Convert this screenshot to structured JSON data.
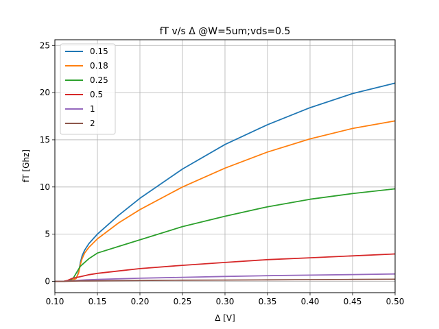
{
  "chart_data": {
    "type": "line",
    "title": "fT v/s Δ @W=5um;vds=0.5",
    "xlabel": "Δ [V]",
    "ylabel": "fT [Ghz]",
    "xlim": [
      0.1,
      0.5
    ],
    "ylim": [
      -1.2,
      25.6
    ],
    "xticks": [
      "0.10",
      "0.15",
      "0.20",
      "0.25",
      "0.30",
      "0.35",
      "0.40",
      "0.45",
      "0.50"
    ],
    "yticks": [
      "0",
      "5",
      "10",
      "15",
      "20",
      "25"
    ],
    "grid": true,
    "legend_position": "top-left",
    "series": [
      {
        "name": "0.15",
        "color": "#1f77b4",
        "x": [
          0.1,
          0.11,
          0.12,
          0.125,
          0.128,
          0.13,
          0.132,
          0.135,
          0.14,
          0.15,
          0.175,
          0.2,
          0.25,
          0.3,
          0.35,
          0.4,
          0.45,
          0.5
        ],
        "y": [
          0.0,
          0.0,
          0.1,
          0.3,
          1.0,
          2.0,
          2.7,
          3.3,
          4.0,
          5.0,
          7.0,
          8.8,
          11.9,
          14.5,
          16.6,
          18.4,
          19.9,
          21.0
        ]
      },
      {
        "name": "0.18",
        "color": "#ff7f0e",
        "x": [
          0.1,
          0.11,
          0.12,
          0.125,
          0.128,
          0.13,
          0.132,
          0.135,
          0.14,
          0.15,
          0.175,
          0.2,
          0.25,
          0.3,
          0.35,
          0.4,
          0.45,
          0.5
        ],
        "y": [
          0.0,
          0.0,
          0.1,
          0.3,
          0.9,
          1.8,
          2.4,
          3.0,
          3.6,
          4.5,
          6.2,
          7.6,
          10.0,
          12.0,
          13.7,
          15.1,
          16.2,
          17.0
        ]
      },
      {
        "name": "0.25",
        "color": "#2ca02c",
        "x": [
          0.1,
          0.11,
          0.118,
          0.122,
          0.126,
          0.13,
          0.135,
          0.14,
          0.15,
          0.175,
          0.2,
          0.25,
          0.3,
          0.35,
          0.4,
          0.45,
          0.5
        ],
        "y": [
          0.0,
          0.0,
          0.1,
          0.4,
          1.0,
          1.6,
          2.0,
          2.4,
          3.0,
          3.7,
          4.4,
          5.8,
          6.9,
          7.9,
          8.7,
          9.3,
          9.8
        ]
      },
      {
        "name": "0.5",
        "color": "#d62728",
        "x": [
          0.1,
          0.11,
          0.115,
          0.12,
          0.13,
          0.14,
          0.15,
          0.175,
          0.2,
          0.25,
          0.3,
          0.35,
          0.4,
          0.45,
          0.5
        ],
        "y": [
          0.0,
          0.0,
          0.1,
          0.3,
          0.5,
          0.7,
          0.85,
          1.1,
          1.35,
          1.7,
          2.0,
          2.3,
          2.5,
          2.7,
          2.9
        ]
      },
      {
        "name": "1",
        "color": "#9467bd",
        "x": [
          0.1,
          0.11,
          0.12,
          0.13,
          0.14,
          0.15,
          0.2,
          0.25,
          0.3,
          0.35,
          0.4,
          0.45,
          0.5
        ],
        "y": [
          0.0,
          0.0,
          0.05,
          0.12,
          0.17,
          0.2,
          0.33,
          0.43,
          0.52,
          0.6,
          0.66,
          0.72,
          0.78
        ]
      },
      {
        "name": "2",
        "color": "#8c564b",
        "x": [
          0.1,
          0.11,
          0.12,
          0.13,
          0.15,
          0.2,
          0.25,
          0.3,
          0.35,
          0.4,
          0.45,
          0.5
        ],
        "y": [
          0.0,
          0.0,
          0.02,
          0.04,
          0.06,
          0.09,
          0.12,
          0.14,
          0.16,
          0.18,
          0.2,
          0.22
        ]
      }
    ]
  }
}
